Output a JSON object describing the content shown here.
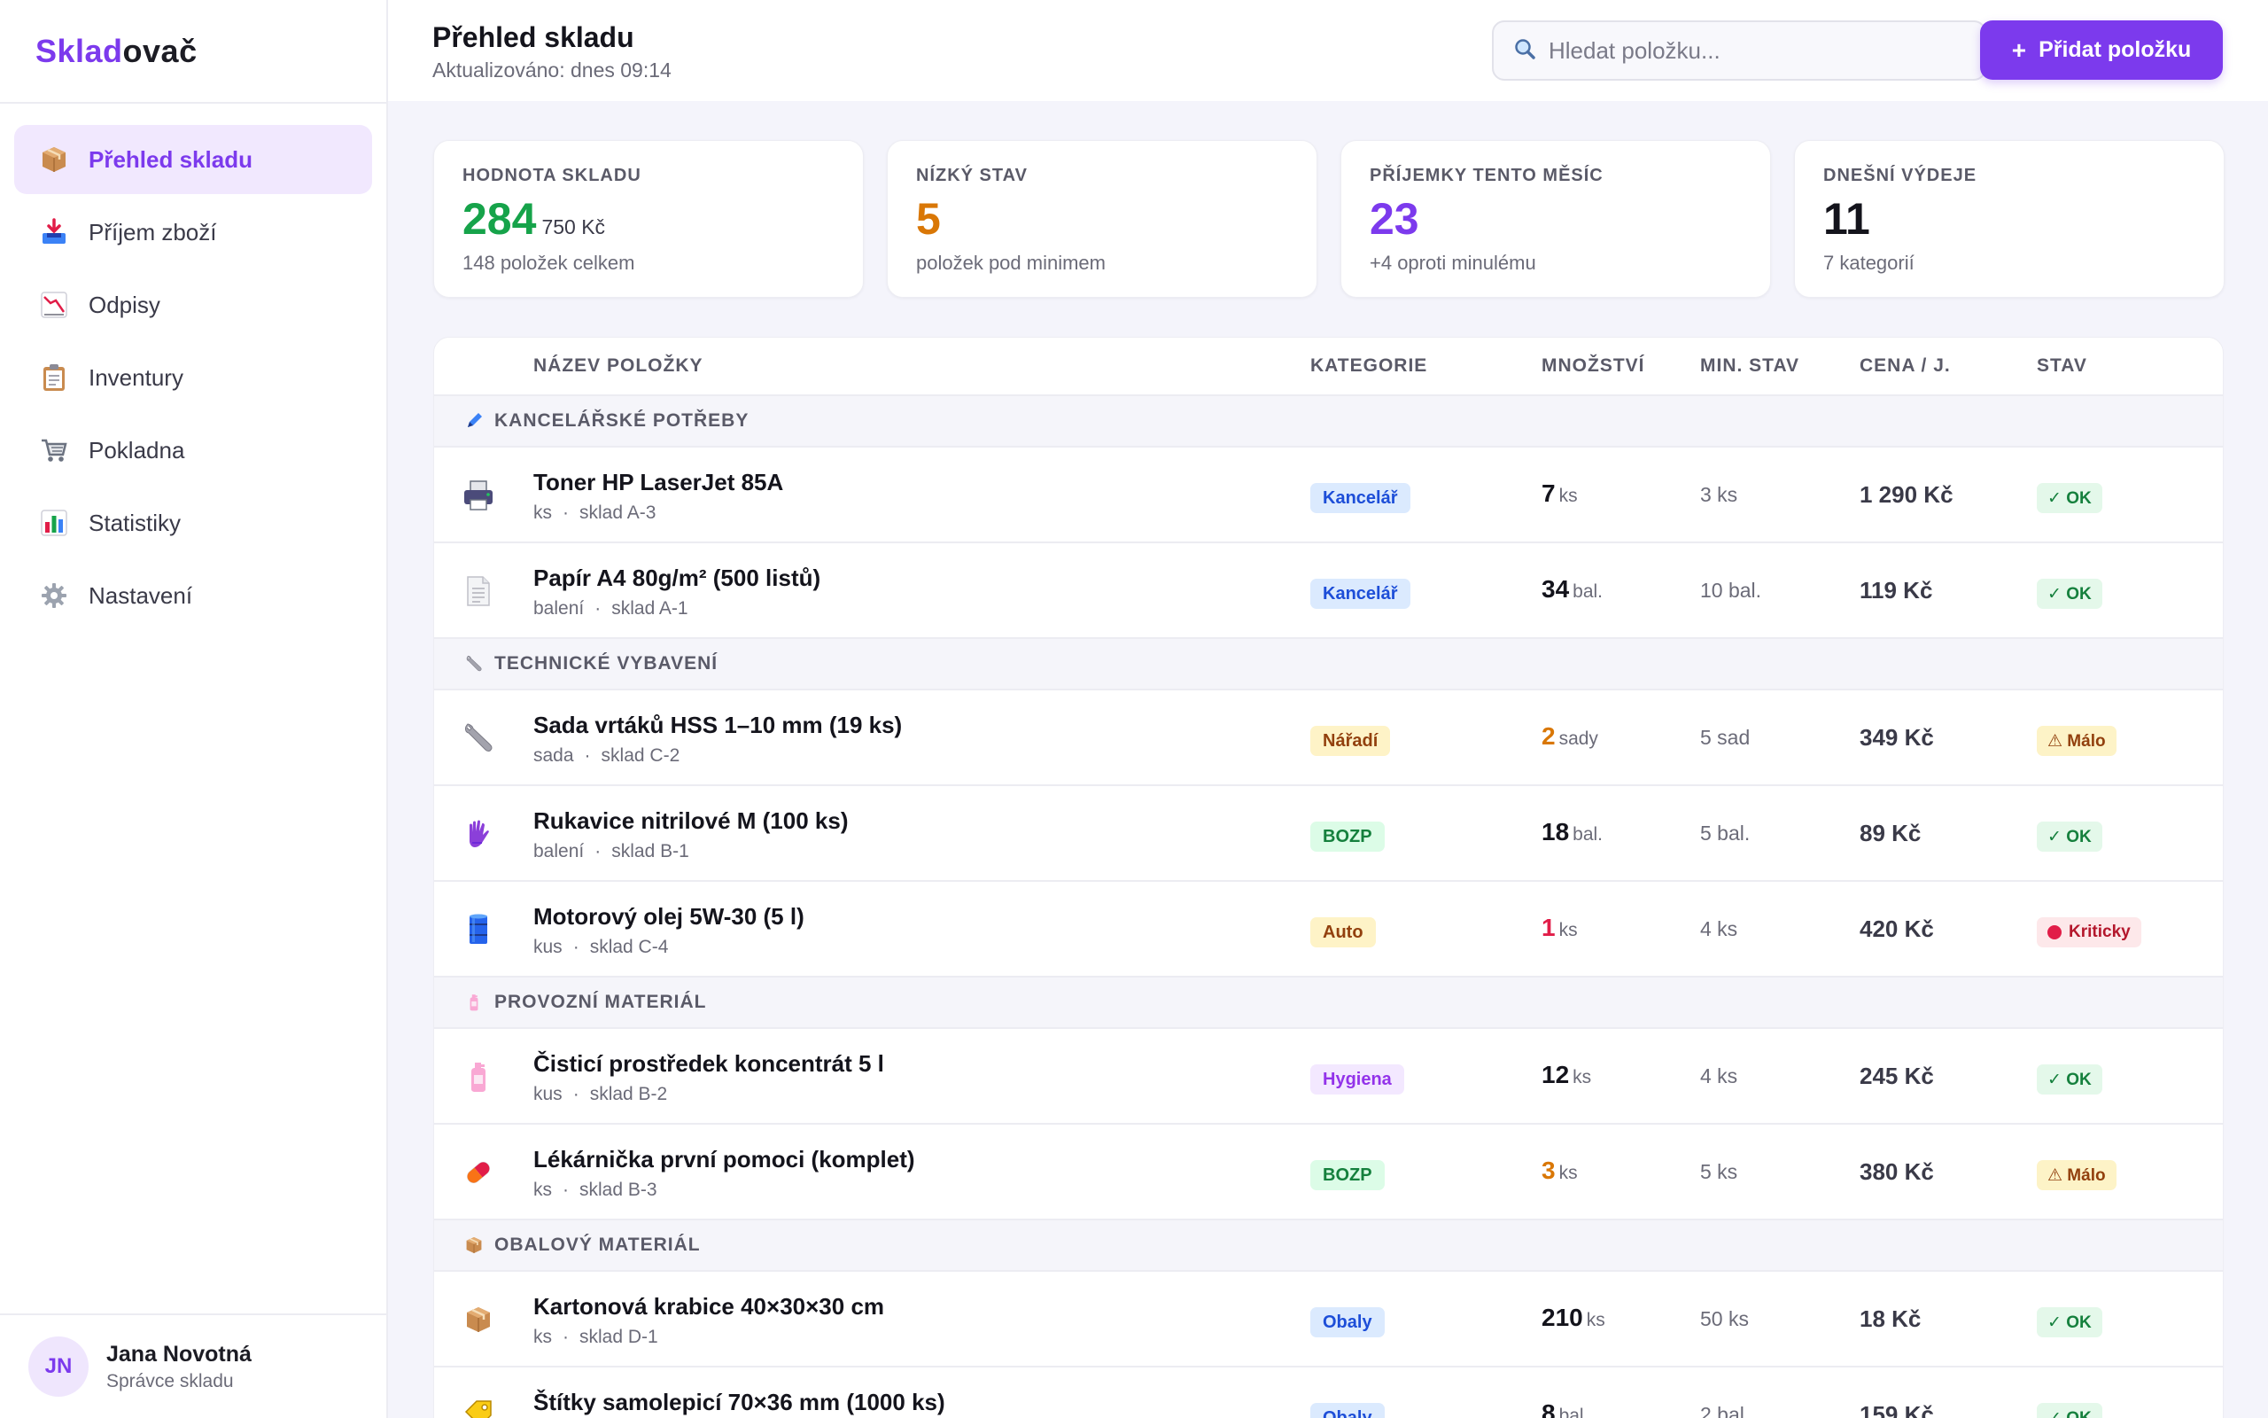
{
  "app": {
    "logo_part1": "Sklad",
    "logo_part2": "ovač"
  },
  "sidebar": {
    "items": [
      {
        "label": "Přehled skladu",
        "icon": "package-icon",
        "active": true
      },
      {
        "label": "Příjem zboží",
        "icon": "inbox-tray-icon",
        "active": false
      },
      {
        "label": "Odpisy",
        "icon": "chart-decreasing-icon",
        "active": false
      },
      {
        "label": "Inventury",
        "icon": "clipboard-icon",
        "active": false
      },
      {
        "label": "Pokladna",
        "icon": "shopping-cart-icon",
        "active": false
      },
      {
        "label": "Statistiky",
        "icon": "bar-chart-icon",
        "active": false
      },
      {
        "label": "Nastavení",
        "icon": "gear-icon",
        "active": false
      }
    ],
    "user": {
      "initials": "JN",
      "name": "Jana Novotná",
      "role": "Správce skladu"
    }
  },
  "header": {
    "title": "Přehled skladu",
    "subtitle": "Aktualizováno: dnes 09:14",
    "search_placeholder": "Hledat položku...",
    "add_label": "Přidat položku",
    "add_plus": "+"
  },
  "stats": [
    {
      "label": "HODNOTA SKLADU",
      "value": "284",
      "unit": "750 Kč",
      "sub": "148 položek celkem",
      "color": "#16a34a"
    },
    {
      "label": "NÍZKÝ STAV",
      "value": "5",
      "unit": "",
      "sub": "položek pod minimem",
      "color": "#d97706"
    },
    {
      "label": "PŘÍJEMKY TENTO MĚSÍC",
      "value": "23",
      "unit": "",
      "sub": "+4 oproti minulému",
      "color": "#7c3aed"
    },
    {
      "label": "DNEŠNÍ VÝDEJE",
      "value": "11",
      "unit": "",
      "sub": "7 kategorií",
      "color": "#14141c"
    }
  ],
  "table": {
    "columns": [
      "NÁZEV POLOŽKY",
      "KATEGORIE",
      "MNOŽSTVÍ",
      "MIN. STAV",
      "CENA / J.",
      "STAV"
    ],
    "groups": [
      {
        "label": "KANCELÁŘSKÉ POTŘEBY",
        "icon": "pen-icon",
        "rows": [
          {
            "icon": "printer-icon",
            "name": "Toner HP LaserJet 85A",
            "unit_name": "ks",
            "location": "sklad A-3",
            "category": "Kancelář",
            "cat_style": "blue",
            "qty": "7",
            "qty_unit": "ks",
            "qty_color": "#14141c",
            "min": "3 ks",
            "price": "1 290 Kč",
            "status": "✓ OK",
            "status_type": "ok"
          },
          {
            "icon": "document-icon",
            "name": "Papír A4 80g/m² (500 listů)",
            "unit_name": "balení",
            "location": "sklad A-1",
            "category": "Kancelář",
            "cat_style": "blue",
            "qty": "34",
            "qty_unit": "bal.",
            "qty_color": "#14141c",
            "min": "10 bal.",
            "price": "119 Kč",
            "status": "✓ OK",
            "status_type": "ok"
          }
        ]
      },
      {
        "label": "TECHNICKÉ VYBAVENÍ",
        "icon": "wrench-icon",
        "rows": [
          {
            "icon": "wrench-icon",
            "name": "Sada vrtáků HSS 1–10 mm (19 ks)",
            "unit_name": "sada",
            "location": "sklad C-2",
            "category": "Nářadí",
            "cat_style": "yellow",
            "qty": "2",
            "qty_unit": "sady",
            "qty_color": "#d97706",
            "min": "5 sad",
            "price": "349 Kč",
            "status": "⚠ Málo",
            "status_type": "low"
          },
          {
            "icon": "glove-icon",
            "name": "Rukavice nitrilové M (100 ks)",
            "unit_name": "balení",
            "location": "sklad B-1",
            "category": "BOZP",
            "cat_style": "green",
            "qty": "18",
            "qty_unit": "bal.",
            "qty_color": "#14141c",
            "min": "5 bal.",
            "price": "89 Kč",
            "status": "✓ OK",
            "status_type": "ok"
          },
          {
            "icon": "oil-drum-icon",
            "name": "Motorový olej 5W-30 (5 l)",
            "unit_name": "kus",
            "location": "sklad C-4",
            "category": "Auto",
            "cat_style": "yellow",
            "qty": "1",
            "qty_unit": "ks",
            "qty_color": "#e11d48",
            "min": "4 ks",
            "price": "420 Kč",
            "status": "Kriticky",
            "status_type": "crit"
          }
        ]
      },
      {
        "label": "PROVOZNÍ MATERIÁL",
        "icon": "bottle-icon",
        "rows": [
          {
            "icon": "bottle-icon",
            "name": "Čisticí prostředek koncentrát 5 l",
            "unit_name": "kus",
            "location": "sklad B-2",
            "category": "Hygiena",
            "cat_style": "purple",
            "qty": "12",
            "qty_unit": "ks",
            "qty_color": "#14141c",
            "min": "4 ks",
            "price": "245 Kč",
            "status": "✓ OK",
            "status_type": "ok"
          },
          {
            "icon": "pill-icon",
            "name": "Lékárnička první pomoci (komplet)",
            "unit_name": "ks",
            "location": "sklad B-3",
            "category": "BOZP",
            "cat_style": "green",
            "qty": "3",
            "qty_unit": "ks",
            "qty_color": "#d97706",
            "min": "5 ks",
            "price": "380 Kč",
            "status": "⚠ Málo",
            "status_type": "low"
          }
        ]
      },
      {
        "label": "OBALOVÝ MATERIÁL",
        "icon": "package-icon",
        "rows": [
          {
            "icon": "package-icon",
            "name": "Kartonová krabice 40×30×30 cm",
            "unit_name": "ks",
            "location": "sklad D-1",
            "category": "Obaly",
            "cat_style": "blue",
            "qty": "210",
            "qty_unit": "ks",
            "qty_color": "#14141c",
            "min": "50 ks",
            "price": "18 Kč",
            "status": "✓ OK",
            "status_type": "ok"
          },
          {
            "icon": "label-icon",
            "name": "Štítky samolepicí 70×36 mm (1000 ks)",
            "unit_name": "",
            "location": "",
            "category": "Obaly",
            "cat_style": "blue",
            "qty": "8",
            "qty_unit": "bal.",
            "qty_color": "#14141c",
            "min": "2 bal.",
            "price": "159 Kč",
            "status": "✓ OK",
            "status_type": "ok"
          }
        ]
      }
    ]
  },
  "colors": {
    "accent": "#7c3aed",
    "cat_blue_bg": "#dbeafe",
    "cat_blue_fg": "#1d4ed8",
    "cat_yellow_bg": "#fef3c7",
    "cat_yellow_fg": "#92400e",
    "cat_green_bg": "#dcfce7",
    "cat_green_fg": "#15803d",
    "cat_purple_bg": "#f3e8ff",
    "cat_purple_fg": "#9333ea"
  }
}
